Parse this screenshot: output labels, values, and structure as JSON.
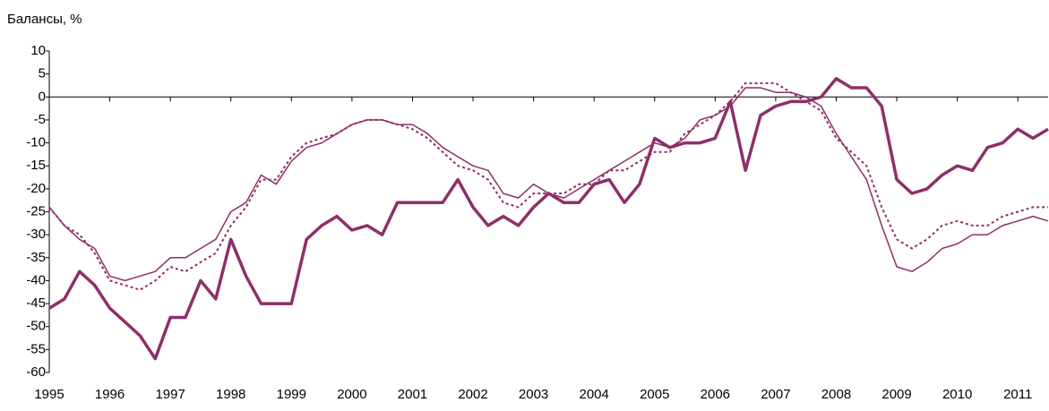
{
  "chart_data": {
    "type": "line",
    "y_label": "Балансы, %",
    "categories": [
      "1995",
      null,
      null,
      null,
      "1996",
      null,
      null,
      null,
      "1997",
      null,
      null,
      null,
      "1998",
      null,
      null,
      null,
      "1999",
      null,
      null,
      null,
      "2000",
      null,
      null,
      null,
      "2001",
      null,
      null,
      null,
      "2002",
      null,
      null,
      null,
      "2003",
      null,
      null,
      null,
      "2004",
      null,
      null,
      null,
      "2005",
      null,
      null,
      null,
      "2006",
      null,
      null,
      null,
      "2007",
      null,
      null,
      null,
      "2008",
      null,
      null,
      null,
      "2009",
      null,
      null,
      null,
      "2010",
      null,
      null,
      null,
      "2011",
      null,
      null
    ],
    "series": [
      {
        "color": "#8e2f68",
        "line_width": 3.5,
        "dash": "solid",
        "values": [
          -46,
          -44,
          -38,
          -41,
          -46,
          -49,
          -52,
          -57,
          -48,
          -48,
          -40,
          -44,
          -31,
          -39,
          -45,
          -45,
          -45,
          -31,
          -28,
          -26,
          -29,
          -28,
          -30,
          -23,
          -23,
          -23,
          -23,
          -18,
          -24,
          -28,
          -26,
          -28,
          -24,
          -21,
          -23,
          -23,
          -19,
          -18,
          -23,
          -19,
          -9,
          -11,
          -10,
          -10,
          -9,
          -1,
          -16,
          -4,
          -2,
          -1,
          -1,
          0,
          4,
          2,
          2,
          -2,
          -18,
          -21,
          -20,
          -17,
          -15,
          -16,
          -11,
          -10,
          -7,
          -9,
          -7
        ]
      },
      {
        "color": "#8e2f68",
        "line_width": 1.5,
        "dash": "solid",
        "values": [
          -24,
          -28,
          -31,
          -33,
          -39,
          -40,
          -39,
          -38,
          -35,
          -35,
          -33,
          -31,
          -25,
          -23,
          -17,
          -19,
          -14,
          -11,
          -10,
          -8,
          -6,
          -5,
          -5,
          -6,
          -6,
          -8,
          -11,
          -13,
          -15,
          -16,
          -21,
          -22,
          -19,
          -21,
          -22,
          -20,
          -18,
          -16,
          -14,
          -12,
          -10,
          -11,
          -9,
          -5,
          -4,
          -2,
          2,
          2,
          1,
          1,
          0,
          -2,
          -8,
          -13,
          -18,
          -28,
          -37,
          -38,
          -36,
          -33,
          -32,
          -30,
          -30,
          -28,
          -27,
          -26,
          -27
        ]
      },
      {
        "color": "#8e2f68",
        "line_width": 2,
        "dash": "dotted",
        "values": [
          -24,
          -28,
          -30,
          -34,
          -40,
          -41,
          -42,
          -40,
          -37,
          -38,
          -36,
          -34,
          -28,
          -24,
          -18,
          -18,
          -13,
          -10,
          -9,
          -8,
          -6,
          -5,
          -5,
          -6,
          -7,
          -9,
          -12,
          -15,
          -16,
          -18,
          -23,
          -24,
          -21,
          -21,
          -21,
          -19,
          -19,
          -16,
          -16,
          -14,
          -12,
          -12,
          -8,
          -6,
          -4,
          -1,
          3,
          3,
          3,
          1,
          -1,
          -3,
          -9,
          -12,
          -15,
          -24,
          -31,
          -33,
          -31,
          -28,
          -27,
          -28,
          -28,
          -26,
          -25,
          -24,
          -24
        ]
      }
    ],
    "ylim": [
      -60,
      10
    ],
    "yticks": [
      10,
      5,
      0,
      -5,
      -10,
      -15,
      -20,
      -25,
      -30,
      -35,
      -40,
      -45,
      -50,
      -55,
      -60
    ]
  }
}
